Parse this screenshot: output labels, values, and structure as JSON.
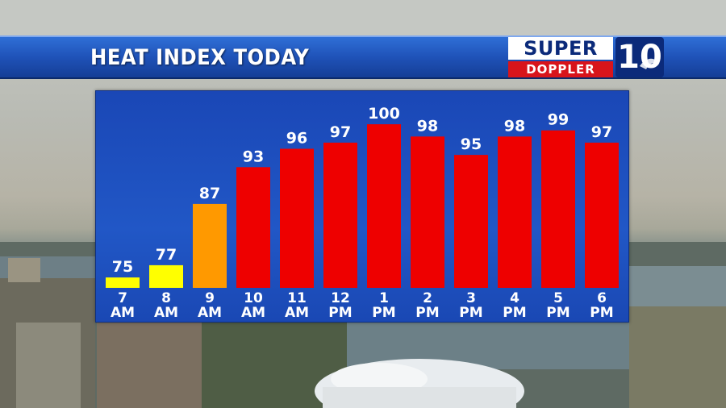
{
  "header": {
    "title": "HEAT INDEX TODAY"
  },
  "logo": {
    "line1": "SUPER",
    "line2": "DOPPLER",
    "number": "10"
  },
  "colors": {
    "title_bar": "#1f52b8",
    "panel": "#2157c6",
    "low": "#ffff00",
    "moderate": "#ff9900",
    "high": "#ee0000",
    "logo_red": "#d8141b",
    "logo_navy": "#0b2a7a"
  },
  "chart_data": {
    "type": "bar",
    "title": "HEAT INDEX TODAY",
    "xlabel": "",
    "ylabel": "",
    "categories": [
      [
        "7",
        "AM"
      ],
      [
        "8",
        "AM"
      ],
      [
        "9",
        "AM"
      ],
      [
        "10",
        "AM"
      ],
      [
        "11",
        "AM"
      ],
      [
        "12",
        "PM"
      ],
      [
        "1",
        "PM"
      ],
      [
        "2",
        "PM"
      ],
      [
        "3",
        "PM"
      ],
      [
        "4",
        "PM"
      ],
      [
        "5",
        "PM"
      ],
      [
        "6",
        "PM"
      ]
    ],
    "values": [
      75,
      77,
      87,
      93,
      96,
      97,
      100,
      98,
      95,
      98,
      99,
      97
    ],
    "bar_colors": [
      "#ffff00",
      "#ffff00",
      "#ff9900",
      "#ee0000",
      "#ee0000",
      "#ee0000",
      "#ee0000",
      "#ee0000",
      "#ee0000",
      "#ee0000",
      "#ee0000",
      "#ee0000"
    ],
    "data_labels": true,
    "grid": false,
    "legend": "none"
  }
}
